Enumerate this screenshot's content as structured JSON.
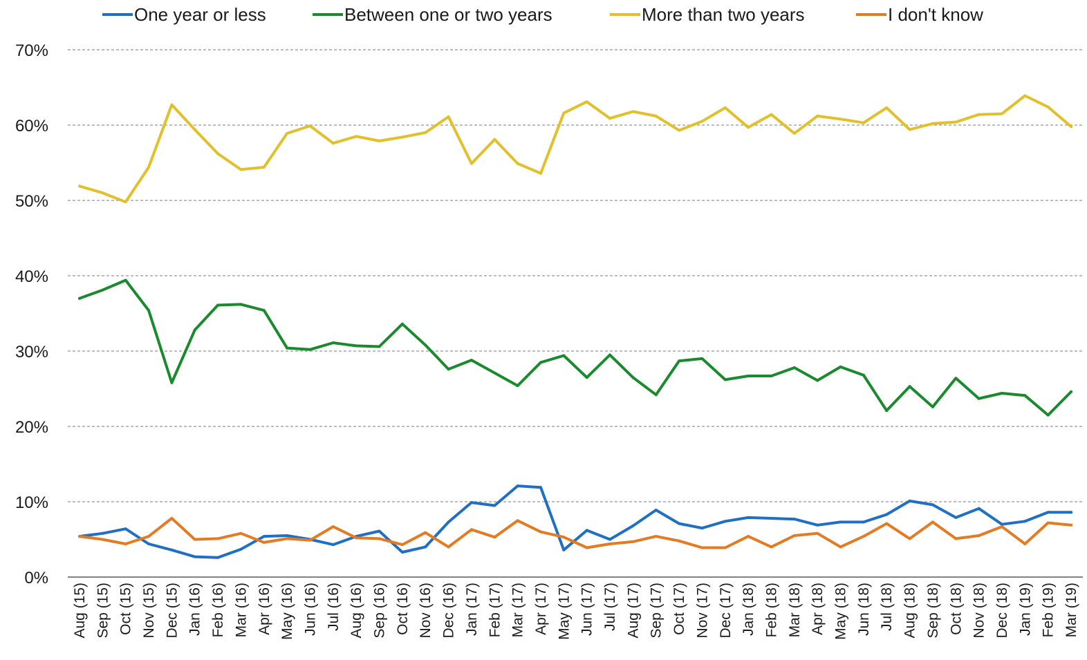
{
  "chart_data": {
    "type": "line",
    "title": "",
    "xlabel": "",
    "ylabel": "",
    "ylim": [
      0,
      70
    ],
    "grid": true,
    "legend_position": "top",
    "y_ticks": [
      "0%",
      "10%",
      "20%",
      "30%",
      "40%",
      "50%",
      "60%",
      "70%"
    ],
    "y_tick_values": [
      0,
      10,
      20,
      30,
      40,
      50,
      60,
      70
    ],
    "categories": [
      "Aug (15)",
      "Sep (15)",
      "Oct (15)",
      "Nov (15)",
      "Dec (15)",
      "Jan (16)",
      "Feb (16)",
      "Mar (16)",
      "Apr (16)",
      "May (16)",
      "Jun (16)",
      "Jul (16)",
      "Aug (16)",
      "Sep (16)",
      "Oct (16)",
      "Nov (16)",
      "Dec (16)",
      "Jan (17)",
      "Feb (17)",
      "Mar (17)",
      "Apr (17)",
      "May (17)",
      "Jun (17)",
      "Jul (17)",
      "Aug (17)",
      "Sep (17)",
      "Oct (17)",
      "Nov (17)",
      "Dec (17)",
      "Jan (18)",
      "Feb (18)",
      "Mar (18)",
      "Apr (18)",
      "May (18)",
      "Jun (18)",
      "Jul (18)",
      "Aug (18)",
      "Sep (18)",
      "Oct (18)",
      "Nov (18)",
      "Dec (18)",
      "Jan (19)",
      "Feb (19)",
      "Mar (19)"
    ],
    "series": [
      {
        "name": "One year or less",
        "color": "#1f6fc5",
        "values": [
          5.4,
          5.8,
          6.4,
          4.4,
          3.6,
          2.7,
          2.6,
          3.7,
          5.4,
          5.5,
          5.0,
          4.3,
          5.4,
          6.1,
          3.3,
          4.0,
          7.3,
          9.9,
          9.5,
          12.1,
          11.9,
          3.6,
          6.2,
          5.0,
          6.8,
          8.9,
          7.1,
          6.5,
          7.4,
          7.9,
          7.8,
          7.7,
          6.9,
          7.3,
          7.3,
          8.3,
          10.1,
          9.6,
          7.9,
          9.1,
          7.0,
          7.4,
          8.6,
          8.6
        ]
      },
      {
        "name": "Between one or two years",
        "color": "#1a8a2e",
        "values": [
          37.0,
          38.1,
          39.4,
          35.4,
          25.8,
          32.8,
          36.1,
          36.2,
          35.4,
          30.4,
          30.2,
          31.1,
          30.7,
          30.6,
          33.6,
          30.8,
          27.6,
          28.8,
          27.1,
          25.4,
          28.5,
          29.4,
          26.5,
          29.5,
          26.5,
          24.2,
          28.7,
          29.0,
          26.2,
          26.7,
          26.7,
          27.8,
          26.1,
          27.9,
          26.8,
          22.1,
          25.3,
          22.6,
          26.4,
          23.7,
          24.4,
          24.1,
          21.5,
          24.6
        ]
      },
      {
        "name": "More than two years",
        "color": "#e2c02b",
        "values": [
          51.9,
          51.0,
          49.8,
          54.4,
          62.7,
          59.4,
          56.2,
          54.1,
          54.4,
          58.9,
          59.9,
          57.6,
          58.5,
          57.9,
          58.4,
          59.0,
          61.1,
          54.9,
          58.1,
          54.9,
          53.6,
          61.6,
          63.1,
          60.9,
          61.8,
          61.2,
          59.3,
          60.5,
          62.3,
          59.7,
          61.4,
          58.9,
          61.2,
          60.8,
          60.3,
          62.3,
          59.4,
          60.2,
          60.4,
          61.4,
          61.5,
          63.9,
          62.4,
          59.8
        ]
      },
      {
        "name": "I don't know",
        "color": "#e47b22",
        "values": [
          5.4,
          5.0,
          4.4,
          5.4,
          7.8,
          5.0,
          5.1,
          5.8,
          4.6,
          5.1,
          4.9,
          6.7,
          5.2,
          5.1,
          4.3,
          5.9,
          4.0,
          6.3,
          5.3,
          7.5,
          6.0,
          5.3,
          3.9,
          4.4,
          4.7,
          5.4,
          4.8,
          3.9,
          3.9,
          5.4,
          4.0,
          5.5,
          5.8,
          4.0,
          5.4,
          7.1,
          5.1,
          7.3,
          5.1,
          5.5,
          6.7,
          4.4,
          7.2,
          6.9
        ]
      }
    ]
  }
}
